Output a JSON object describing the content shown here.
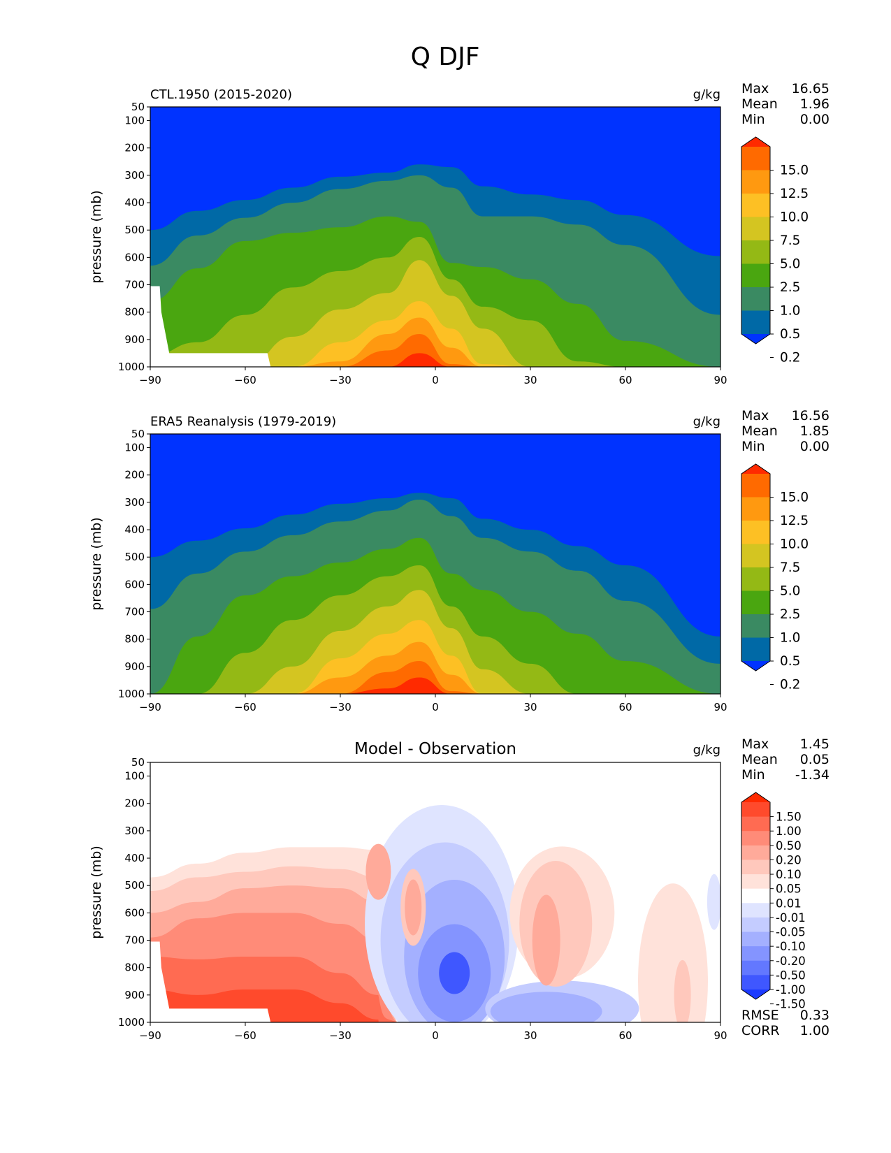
{
  "figure_title": "Q DJF",
  "chart_data": [
    {
      "type": "contour",
      "title": "CTL.1950 (2015-2020)",
      "units": "g/kg",
      "ylabel": "pressure (mb)",
      "x_ticks": [
        "−90",
        "−60",
        "−30",
        "0",
        "30",
        "60",
        "90"
      ],
      "y_ticks": [
        "50",
        "100",
        "200",
        "300",
        "400",
        "500",
        "600",
        "700",
        "800",
        "900",
        "1000"
      ],
      "xlim": [
        -90,
        90
      ],
      "ylim": [
        1000,
        50
      ],
      "stats": [
        {
          "label": "Max",
          "value": "16.65"
        },
        {
          "label": "Mean",
          "value": "1.96"
        },
        {
          "label": "Min",
          "value": "0.00"
        }
      ],
      "colorbar": {
        "labels": [
          "15.0",
          "12.5",
          "10.0",
          "7.5",
          "5.0",
          "2.5",
          "1.0",
          "0.5",
          "0.2"
        ],
        "colors": [
          "#ff2a00",
          "#ff6a00",
          "#ff9910",
          "#fdc024",
          "#d4c521",
          "#94b915",
          "#4aa610",
          "#3a8a62",
          "#0069a6",
          "#0033ff"
        ]
      },
      "contour_tops": [
        [
          500,
          430,
          390,
          345,
          305,
          290,
          260,
          270,
          340,
          370,
          390,
          445,
          595
        ],
        [
          630,
          520,
          455,
          400,
          350,
          320,
          300,
          345,
          450,
          450,
          480,
          555,
          810
        ],
        [
          760,
          640,
          540,
          510,
          490,
          450,
          470,
          620,
          635,
          680,
          770,
          905,
          1000
        ],
        [
          960,
          910,
          810,
          710,
          650,
          600,
          525,
          680,
          780,
          830,
          980,
          1000,
          1000
        ],
        [
          1000,
          1000,
          1000,
          890,
          790,
          730,
          610,
          740,
          860,
          1000,
          1000,
          1000,
          1000
        ],
        [
          1000,
          1000,
          1000,
          1000,
          910,
          830,
          760,
          860,
          990,
          1000,
          1000,
          1000,
          1000
        ],
        [
          1000,
          1000,
          1000,
          1000,
          980,
          880,
          820,
          930,
          1000,
          1000,
          1000,
          1000,
          1000
        ],
        [
          1000,
          1000,
          1000,
          1000,
          1000,
          940,
          880,
          990,
          1000,
          1000,
          1000,
          1000,
          1000
        ],
        [
          1000,
          1000,
          1000,
          1000,
          1000,
          1000,
          950,
          1000,
          1000,
          1000,
          1000,
          1000,
          1000
        ]
      ]
    },
    {
      "type": "contour",
      "title": "ERA5 Reanalysis (1979-2019)",
      "units": "g/kg",
      "ylabel": "pressure (mb)",
      "x_ticks": [
        "−90",
        "−60",
        "−30",
        "0",
        "30",
        "60",
        "90"
      ],
      "y_ticks": [
        "50",
        "100",
        "200",
        "300",
        "400",
        "500",
        "600",
        "700",
        "800",
        "900",
        "1000"
      ],
      "xlim": [
        -90,
        90
      ],
      "ylim": [
        1000,
        50
      ],
      "stats": [
        {
          "label": "Max",
          "value": "16.56"
        },
        {
          "label": "Mean",
          "value": "1.85"
        },
        {
          "label": "Min",
          "value": "0.00"
        }
      ],
      "colorbar": {
        "labels": [
          "15.0",
          "12.5",
          "10.0",
          "7.5",
          "5.0",
          "2.5",
          "1.0",
          "0.5",
          "0.2"
        ],
        "colors": [
          "#ff2a00",
          "#ff6a00",
          "#ff9910",
          "#fdc024",
          "#d4c521",
          "#94b915",
          "#4aa610",
          "#3a8a62",
          "#0069a6",
          "#0033ff"
        ]
      },
      "contour_tops": [
        [
          500,
          440,
          395,
          345,
          305,
          285,
          265,
          285,
          360,
          400,
          460,
          530,
          790
        ],
        [
          690,
          560,
          480,
          420,
          370,
          330,
          290,
          350,
          430,
          480,
          550,
          660,
          890
        ],
        [
          1000,
          790,
          640,
          570,
          520,
          470,
          430,
          560,
          620,
          700,
          780,
          880,
          1000
        ],
        [
          1000,
          1000,
          850,
          730,
          640,
          570,
          530,
          680,
          790,
          890,
          1000,
          1000,
          1000
        ],
        [
          1000,
          1000,
          1000,
          900,
          770,
          680,
          620,
          760,
          910,
          1000,
          1000,
          1000,
          1000
        ],
        [
          1000,
          1000,
          1000,
          1000,
          870,
          780,
          730,
          860,
          1000,
          1000,
          1000,
          1000,
          1000
        ],
        [
          1000,
          1000,
          1000,
          1000,
          940,
          860,
          810,
          930,
          1000,
          1000,
          1000,
          1000,
          1000
        ],
        [
          1000,
          1000,
          1000,
          1000,
          1000,
          920,
          880,
          990,
          1000,
          1000,
          1000,
          1000,
          1000
        ],
        [
          1000,
          1000,
          1000,
          1000,
          1000,
          980,
          940,
          1000,
          1000,
          1000,
          1000,
          1000,
          1000
        ]
      ]
    },
    {
      "type": "contour",
      "title": "Model - Observation",
      "units": "g/kg",
      "ylabel": "pressure (mb)",
      "x_ticks": [
        "−90",
        "−60",
        "−30",
        "0",
        "30",
        "60",
        "90"
      ],
      "y_ticks": [
        "50",
        "100",
        "200",
        "300",
        "400",
        "500",
        "600",
        "700",
        "800",
        "900",
        "1000"
      ],
      "xlim": [
        -90,
        90
      ],
      "ylim": [
        1000,
        50
      ],
      "stats": [
        {
          "label": "Max",
          "value": "1.45"
        },
        {
          "label": "Mean",
          "value": "0.05"
        },
        {
          "label": "Min",
          "value": "-1.34"
        }
      ],
      "extra_stats": [
        {
          "label": "RMSE",
          "value": "0.33"
        },
        {
          "label": "CORR",
          "value": "1.00"
        }
      ],
      "colorbar": {
        "labels": [
          "1.50",
          "1.00",
          "0.50",
          "0.20",
          "0.10",
          "0.05",
          "0.01",
          "-0.01",
          "-0.05",
          "-0.10",
          "-0.20",
          "-0.50",
          "-1.00",
          "-1.50"
        ],
        "colors": [
          "#ff2a00",
          "#ff4a2c",
          "#ff6b52",
          "#ff8b78",
          "#ffaa9a",
          "#ffc8bc",
          "#ffe2da",
          "#ffffff",
          "#dfe4ff",
          "#c4ccff",
          "#a4b0ff",
          "#8494ff",
          "#6378ff",
          "#3f57ff",
          "#1c3aff"
        ]
      }
    }
  ]
}
